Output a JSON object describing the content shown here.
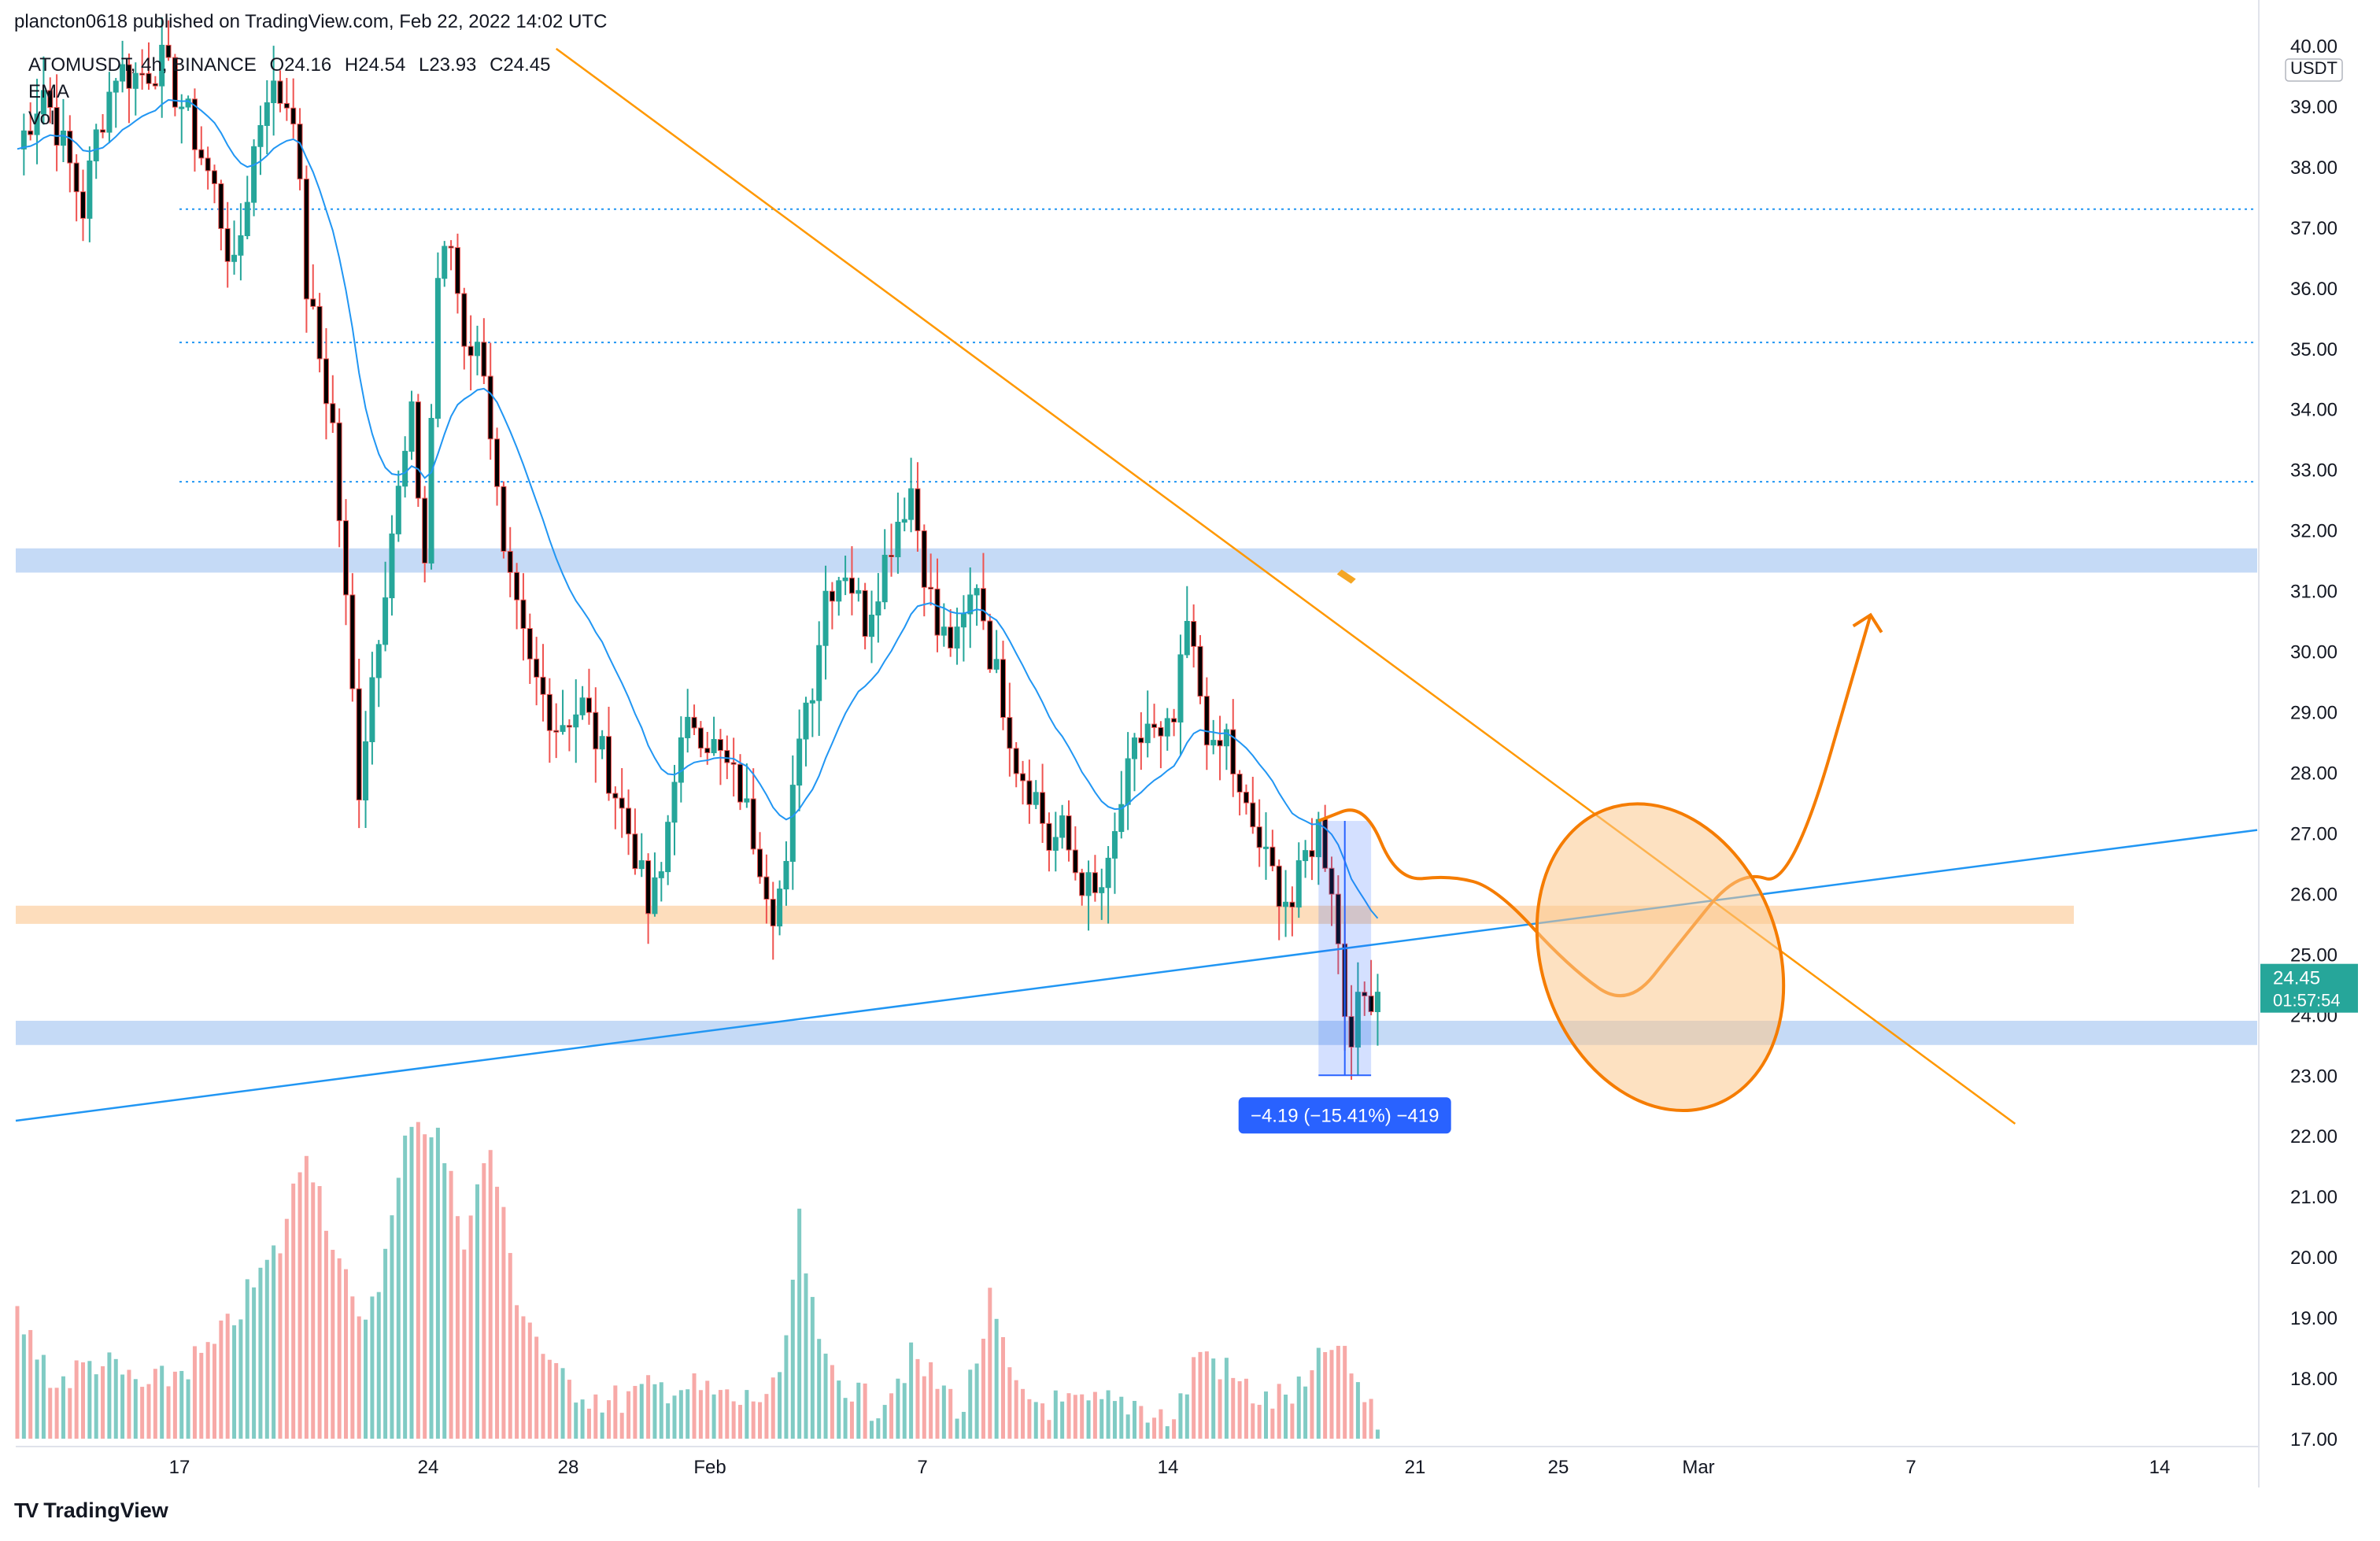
{
  "header": "plancton0618 published on TradingView.com, Feb 22, 2022 14:02 UTC",
  "legend": {
    "symbol": "ATOMUSDT, 4h, BINANCE",
    "open": "O24.16",
    "high": "H24.54",
    "low": "L23.93",
    "close": "C24.45",
    "ema_label": "EMA",
    "vol_label": "Vol"
  },
  "footer": {
    "brand": "TradingView"
  },
  "colors": {
    "up": "#26a69a",
    "down": "#ef5350",
    "candle_body": "#000000",
    "ema": "#2196f3",
    "trend_orange": "#ff9800",
    "zone_blue": "#bbd4f5",
    "zone_orange": "#fdd7b0",
    "price_label": "#26a69a",
    "measure": "#2962ff"
  },
  "chart_data": {
    "type": "candlestick",
    "symbol": "ATOMUSDT",
    "timeframe": "4h",
    "exchange": "BINANCE",
    "currency": "USDT",
    "ylim": [
      17.0,
      40.0
    ],
    "y_ticks": [
      "40.00",
      "39.00",
      "38.00",
      "37.00",
      "36.00",
      "35.00",
      "34.00",
      "33.00",
      "32.00",
      "31.00",
      "30.00",
      "29.00",
      "28.00",
      "27.00",
      "26.00",
      "25.00",
      "24.00",
      "23.00",
      "22.00",
      "21.00",
      "20.00",
      "19.00",
      "18.00",
      "17.00"
    ],
    "x_ticks": [
      "17",
      "24",
      "28",
      "Feb",
      "7",
      "14",
      "21",
      "25",
      "Mar",
      "7",
      "14"
    ],
    "last_price": "24.45",
    "countdown": "01:57:54",
    "price_path": [
      [
        0,
        38.3
      ],
      [
        4,
        39.3
      ],
      [
        8,
        38.0
      ],
      [
        10,
        37.3
      ],
      [
        12,
        38.5
      ],
      [
        15,
        39.6
      ],
      [
        18,
        39.5
      ],
      [
        22,
        39.7
      ],
      [
        26,
        38.8
      ],
      [
        30,
        37.6
      ],
      [
        33,
        36.2
      ],
      [
        36,
        38.3
      ],
      [
        38,
        39.3
      ],
      [
        42,
        39.0
      ],
      [
        44,
        36.0
      ],
      [
        48,
        33.7
      ],
      [
        52,
        27.8
      ],
      [
        54,
        29.6
      ],
      [
        57,
        32.0
      ],
      [
        60,
        33.8
      ],
      [
        62,
        31.5
      ],
      [
        64,
        36.2
      ],
      [
        66,
        36.7
      ],
      [
        68,
        35.2
      ],
      [
        71,
        34.8
      ],
      [
        74,
        31.4
      ],
      [
        78,
        29.7
      ],
      [
        82,
        28.8
      ],
      [
        86,
        29.1
      ],
      [
        90,
        28.0
      ],
      [
        94,
        26.7
      ],
      [
        96,
        25.7
      ],
      [
        98,
        26.3
      ],
      [
        100,
        28.1
      ],
      [
        103,
        28.9
      ],
      [
        106,
        28.4
      ],
      [
        110,
        27.7
      ],
      [
        113,
        26.6
      ],
      [
        115,
        25.8
      ],
      [
        117,
        26.3
      ],
      [
        119,
        28.8
      ],
      [
        121,
        29.5
      ],
      [
        123,
        31.0
      ],
      [
        126,
        31.4
      ],
      [
        129,
        30.5
      ],
      [
        132,
        31.5
      ],
      [
        134,
        32.2
      ],
      [
        136,
        32.7
      ],
      [
        138,
        31.4
      ],
      [
        140,
        30.3
      ],
      [
        143,
        30.1
      ],
      [
        146,
        31.2
      ],
      [
        148,
        30.0
      ],
      [
        150,
        29.2
      ],
      [
        152,
        28.2
      ],
      [
        155,
        27.6
      ],
      [
        157,
        26.8
      ],
      [
        159,
        27.0
      ],
      [
        161,
        26.4
      ],
      [
        164,
        25.9
      ],
      [
        166,
        26.3
      ],
      [
        168,
        27.5
      ],
      [
        170,
        28.3
      ],
      [
        172,
        28.8
      ],
      [
        174,
        28.4
      ],
      [
        176,
        28.8
      ],
      [
        178,
        30.4
      ],
      [
        180,
        29.3
      ],
      [
        182,
        28.2
      ],
      [
        184,
        28.6
      ],
      [
        186,
        27.5
      ],
      [
        188,
        27.1
      ],
      [
        190,
        26.5
      ],
      [
        192,
        26.1
      ],
      [
        194,
        25.8
      ],
      [
        196,
        26.6
      ],
      [
        198,
        27.1
      ],
      [
        200,
        26.2
      ],
      [
        202,
        24.1
      ],
      [
        203,
        23.8
      ],
      [
        205,
        24.3
      ],
      [
        207,
        24.45
      ]
    ],
    "volume_profile": [
      [
        0,
        19.3
      ],
      [
        6,
        18.2
      ],
      [
        12,
        18.6
      ],
      [
        20,
        18.1
      ],
      [
        30,
        18.8
      ],
      [
        40,
        20.5
      ],
      [
        44,
        22.2
      ],
      [
        48,
        20.6
      ],
      [
        52,
        19.1
      ],
      [
        56,
        20.3
      ],
      [
        60,
        22.7
      ],
      [
        64,
        22.3
      ],
      [
        68,
        20.7
      ],
      [
        72,
        22.1
      ],
      [
        76,
        19.7
      ],
      [
        82,
        18.3
      ],
      [
        90,
        17.9
      ],
      [
        100,
        18.2
      ],
      [
        110,
        17.9
      ],
      [
        116,
        18.1
      ],
      [
        119,
        20.8
      ],
      [
        122,
        18.7
      ],
      [
        130,
        17.8
      ],
      [
        136,
        18.6
      ],
      [
        144,
        17.8
      ],
      [
        148,
        19.5
      ],
      [
        152,
        18.0
      ],
      [
        160,
        17.8
      ],
      [
        170,
        17.9
      ],
      [
        176,
        17.6
      ],
      [
        180,
        18.8
      ],
      [
        186,
        18.2
      ],
      [
        190,
        17.9
      ],
      [
        196,
        18.1
      ],
      [
        200,
        18.9
      ],
      [
        204,
        18.2
      ],
      [
        207,
        17.4
      ]
    ],
    "zones": [
      {
        "kind": "resistance",
        "from": 31.3,
        "to": 31.7
      },
      {
        "kind": "support",
        "from": 25.5,
        "to": 25.8
      },
      {
        "kind": "support",
        "from": 23.5,
        "to": 23.9
      }
    ],
    "levels": [
      37.3,
      35.1,
      32.8
    ],
    "measure": {
      "label": "−4.19 (−15.41%) −419",
      "from": 27.2,
      "to": 23.0
    }
  }
}
